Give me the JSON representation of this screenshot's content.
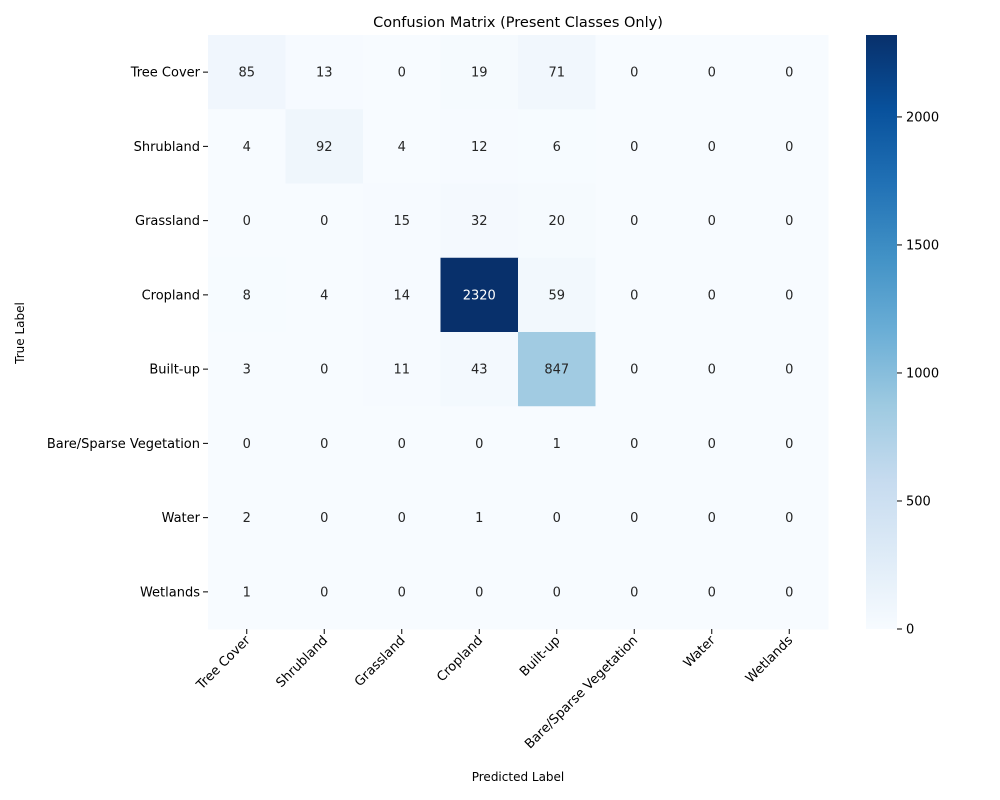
{
  "chart_data": {
    "type": "heatmap",
    "title": "Confusion Matrix (Present Classes Only)",
    "xlabel": "Predicted Label",
    "ylabel": "True Label",
    "row_labels": [
      "Tree Cover",
      "Shrubland",
      "Grassland",
      "Cropland",
      "Built-up",
      "Bare/Sparse Vegetation",
      "Water",
      "Wetlands"
    ],
    "col_labels": [
      "Tree Cover",
      "Shrubland",
      "Grassland",
      "Cropland",
      "Built-up",
      "Bare/Sparse Vegetation",
      "Water",
      "Wetlands"
    ],
    "values": [
      [
        85,
        13,
        0,
        19,
        71,
        0,
        0,
        0
      ],
      [
        4,
        92,
        4,
        12,
        6,
        0,
        0,
        0
      ],
      [
        0,
        0,
        15,
        32,
        20,
        0,
        0,
        0
      ],
      [
        8,
        4,
        14,
        2320,
        59,
        0,
        0,
        0
      ],
      [
        3,
        0,
        11,
        43,
        847,
        0,
        0,
        0
      ],
      [
        0,
        0,
        0,
        0,
        1,
        0,
        0,
        0
      ],
      [
        2,
        0,
        0,
        1,
        0,
        0,
        0,
        0
      ],
      [
        1,
        0,
        0,
        0,
        0,
        0,
        0,
        0
      ]
    ],
    "colormap": "Blues",
    "colorbar": {
      "range": [
        0,
        2320
      ],
      "ticks": [
        0,
        500,
        1000,
        1500,
        2000
      ],
      "low_color": "#f7fbff",
      "high_color": "#08306b"
    },
    "grid": false
  }
}
